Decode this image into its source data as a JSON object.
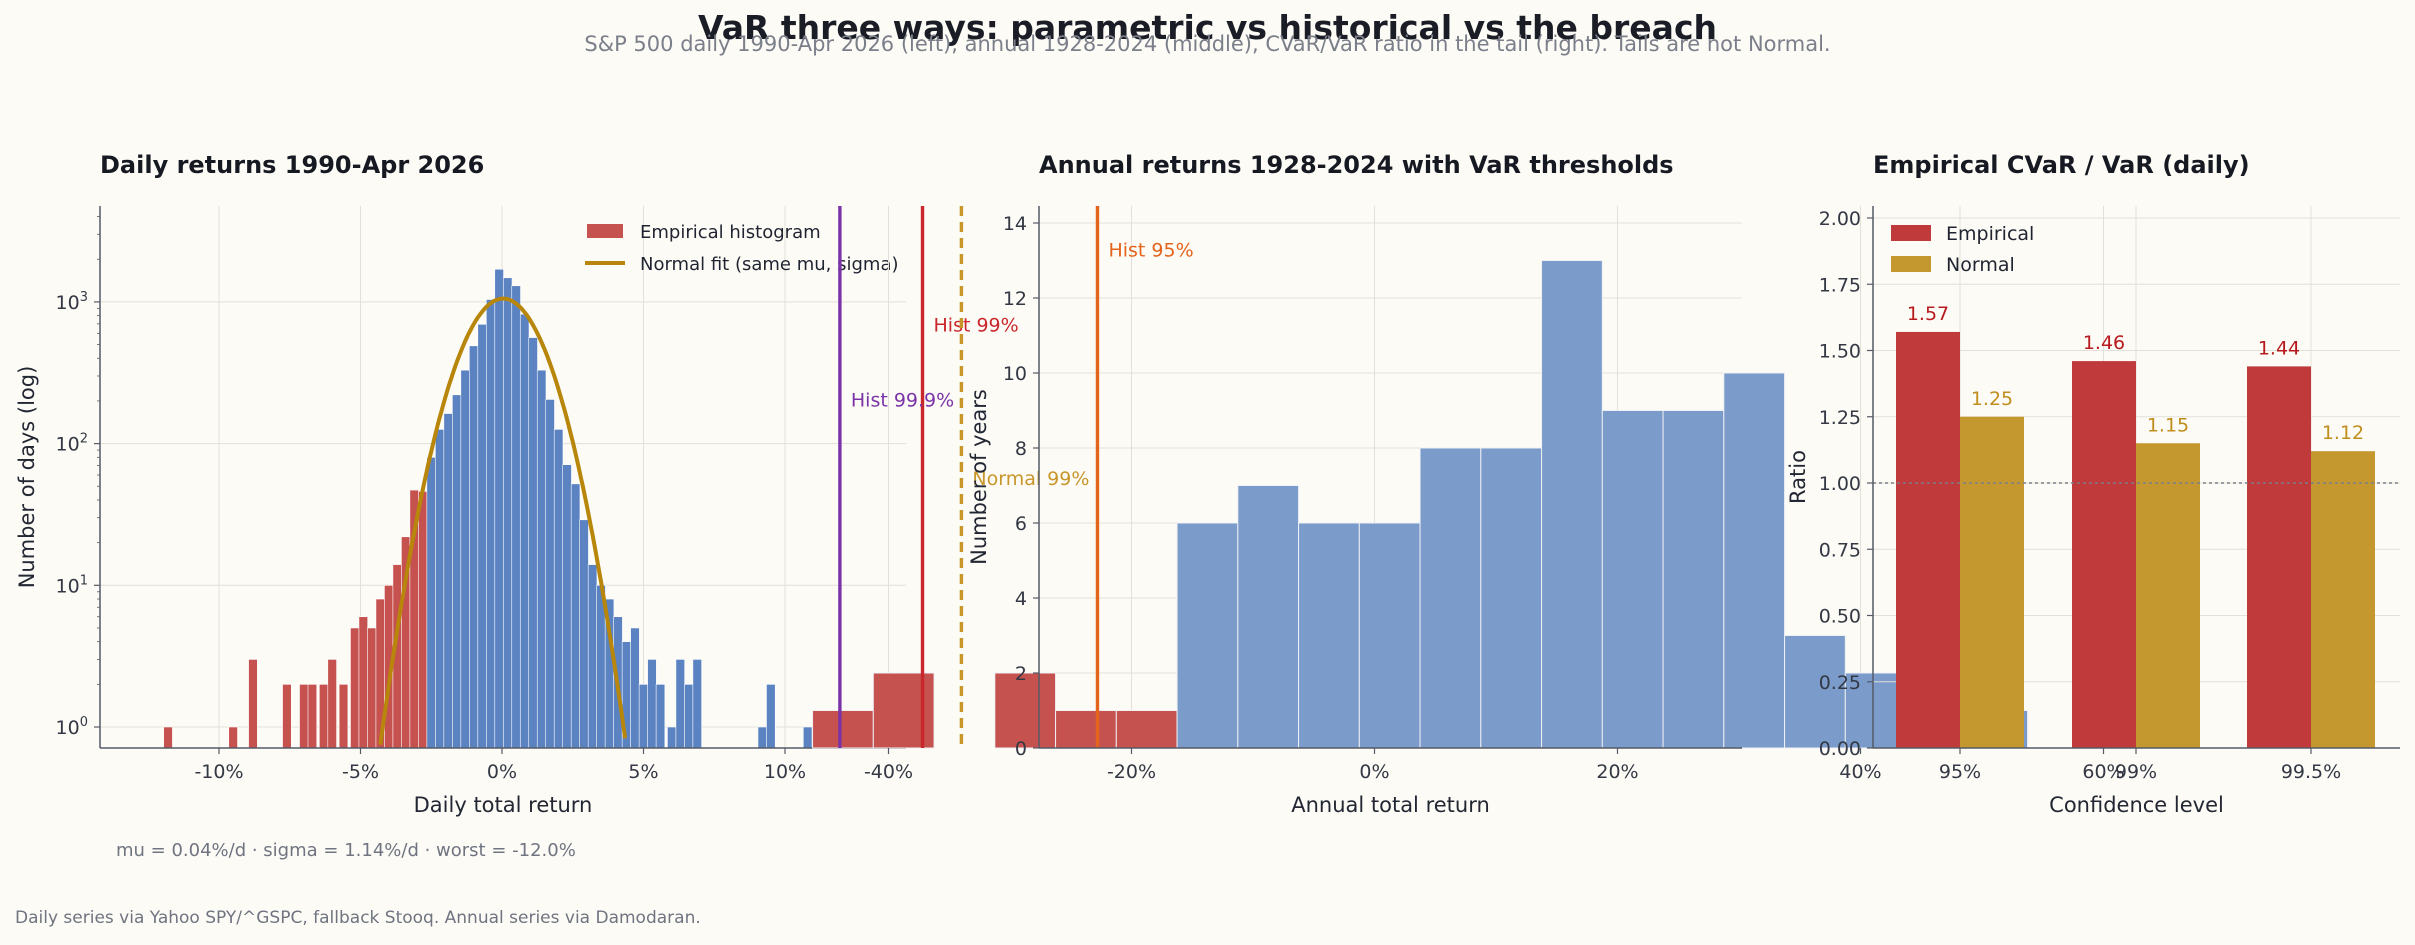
{
  "title": "VaR three ways: parametric vs historical vs the breach",
  "subtitle": "S&P 500 daily 1990-Apr 2026 (left), annual 1928-2024 (middle), CVaR/VaR ratio in the tail (right). Tails are not Normal.",
  "footer": "Daily series via Yahoo SPY/^GSPC, fallback Stooq. Annual series via Damodaran.",
  "colors": {
    "empirical_bar": "#c0393b",
    "loss_tail": "#c65250",
    "body_blue": "#5b83c2",
    "annual_blue": "#7b9bca",
    "normal_gold": "#c4982e",
    "normal_line": "#b8860b",
    "hist95": "#e4641c",
    "hist99": "#c9272c",
    "hist999": "#7b34a8",
    "normal99": "#c9962a"
  },
  "chart_data": [
    {
      "type": "bar",
      "title": "Daily returns 1990-Apr 2026",
      "xlabel": "Daily total return",
      "ylabel": "Number of days (log)",
      "scale_y": "log",
      "xlim": [
        -0.1,
        0.1
      ],
      "ylim": [
        0.7,
        5000
      ],
      "x_ticks": [
        "-10%",
        "-5%",
        "0%",
        "5%",
        "10%"
      ],
      "y_ticks": [
        "10^0",
        "10^1",
        "10^2",
        "10^3"
      ],
      "legend": [
        "Empirical histogram",
        "Normal fit (same mu, sigma)"
      ],
      "legend_position": "top-right",
      "grid": true,
      "bin_width": 0.005,
      "bins": [
        {
          "x": -0.118,
          "count": 1
        },
        {
          "x": -0.095,
          "count": 1
        },
        {
          "x": -0.088,
          "count": 3
        },
        {
          "x": -0.076,
          "count": 2
        },
        {
          "x": -0.07,
          "count": 2
        },
        {
          "x": -0.067,
          "count": 2
        },
        {
          "x": -0.063,
          "count": 2
        },
        {
          "x": -0.06,
          "count": 3
        },
        {
          "x": -0.056,
          "count": 2
        },
        {
          "x": -0.052,
          "count": 5
        },
        {
          "x": -0.049,
          "count": 6
        },
        {
          "x": -0.046,
          "count": 5
        },
        {
          "x": -0.043,
          "count": 8
        },
        {
          "x": -0.04,
          "count": 10
        },
        {
          "x": -0.037,
          "count": 14
        },
        {
          "x": -0.034,
          "count": 22
        },
        {
          "x": -0.031,
          "count": 47
        },
        {
          "x": -0.028,
          "count": 46
        },
        {
          "x": -0.025,
          "count": 80
        },
        {
          "x": -0.022,
          "count": 126
        },
        {
          "x": -0.019,
          "count": 163
        },
        {
          "x": -0.016,
          "count": 221
        },
        {
          "x": -0.013,
          "count": 330
        },
        {
          "x": -0.01,
          "count": 490
        },
        {
          "x": -0.007,
          "count": 695
        },
        {
          "x": -0.004,
          "count": 1040
        },
        {
          "x": -0.001,
          "count": 1700
        },
        {
          "x": 0.002,
          "count": 1480
        },
        {
          "x": 0.005,
          "count": 1300
        },
        {
          "x": 0.008,
          "count": 820
        },
        {
          "x": 0.011,
          "count": 560
        },
        {
          "x": 0.014,
          "count": 330
        },
        {
          "x": 0.017,
          "count": 205
        },
        {
          "x": 0.02,
          "count": 126
        },
        {
          "x": 0.023,
          "count": 71
        },
        {
          "x": 0.026,
          "count": 52
        },
        {
          "x": 0.029,
          "count": 29
        },
        {
          "x": 0.032,
          "count": 14
        },
        {
          "x": 0.035,
          "count": 10
        },
        {
          "x": 0.038,
          "count": 8
        },
        {
          "x": 0.041,
          "count": 6
        },
        {
          "x": 0.044,
          "count": 4
        },
        {
          "x": 0.047,
          "count": 5
        },
        {
          "x": 0.05,
          "count": 2
        },
        {
          "x": 0.053,
          "count": 3
        },
        {
          "x": 0.056,
          "count": 2
        },
        {
          "x": 0.06,
          "count": 1
        },
        {
          "x": 0.063,
          "count": 3
        },
        {
          "x": 0.066,
          "count": 2
        },
        {
          "x": 0.069,
          "count": 3
        },
        {
          "x": 0.092,
          "count": 1
        },
        {
          "x": 0.095,
          "count": 2
        },
        {
          "x": 0.108,
          "count": 1
        },
        {
          "x": 0.115,
          "count": 1
        }
      ],
      "tail_cutoff": -0.027,
      "normal_fit": {
        "mu": 0.0004,
        "sigma": 0.0114,
        "peak": 1055
      },
      "stats_text": "mu = 0.04%/d  ·  sigma = 1.14%/d  ·  worst = -12.0%"
    },
    {
      "type": "bar",
      "title": "Annual returns 1928-2024 with VaR thresholds",
      "xlabel": "Annual total return",
      "ylabel": "Number of years",
      "xlim": [
        -0.55,
        0.6
      ],
      "ylim": [
        0,
        14.5
      ],
      "x_ticks": [
        "-40%",
        "-20%",
        "0%",
        "20%",
        "40%",
        "60%"
      ],
      "y_ticks": [
        "0",
        "2",
        "4",
        "6",
        "8",
        "10",
        "12",
        "14"
      ],
      "grid": true,
      "bin_width": 0.05,
      "bins": [
        {
          "x": -0.4375,
          "count": 1,
          "tail": true
        },
        {
          "x": -0.3875,
          "count": 2,
          "tail": true
        },
        {
          "x": -0.3375,
          "count": 0,
          "tail": true
        },
        {
          "x": -0.2875,
          "count": 2,
          "tail": true
        },
        {
          "x": -0.2375,
          "count": 1,
          "tail": true
        },
        {
          "x": -0.1875,
          "count": 1,
          "tail": true
        },
        {
          "x": -0.1375,
          "count": 6,
          "tail": false
        },
        {
          "x": -0.0875,
          "count": 7,
          "tail": false
        },
        {
          "x": -0.0375,
          "count": 6,
          "tail": false
        },
        {
          "x": 0.0125,
          "count": 6,
          "tail": false
        },
        {
          "x": 0.0625,
          "count": 8,
          "tail": false
        },
        {
          "x": 0.1125,
          "count": 8,
          "tail": false
        },
        {
          "x": 0.1625,
          "count": 13,
          "tail": false
        },
        {
          "x": 0.2125,
          "count": 9,
          "tail": false
        },
        {
          "x": 0.2625,
          "count": 9,
          "tail": false
        },
        {
          "x": 0.3125,
          "count": 10,
          "tail": false
        },
        {
          "x": 0.3625,
          "count": 3,
          "tail": false
        },
        {
          "x": 0.4125,
          "count": 2,
          "tail": false
        },
        {
          "x": 0.4625,
          "count": 2,
          "tail": false
        },
        {
          "x": 0.5125,
          "count": 1,
          "tail": false
        }
      ],
      "thresholds": [
        {
          "label": "Hist 95%",
          "x": -0.228,
          "color": "#e4641c",
          "dashed": false,
          "label_y": 13.3
        },
        {
          "label": "Hist 99%",
          "x": -0.372,
          "color": "#c9272c",
          "dashed": false,
          "label_y": 11.3
        },
        {
          "label": "Hist 99.9%",
          "x": -0.44,
          "color": "#7b34a8",
          "dashed": false,
          "label_y": 9.3
        },
        {
          "label": "Normal 99%",
          "x": -0.34,
          "color": "#c9962a",
          "dashed": true,
          "label_y": 7.2
        }
      ]
    },
    {
      "type": "bar",
      "title": "Empirical CVaR / VaR (daily)",
      "xlabel": "Confidence level",
      "ylabel": "Ratio",
      "ylim": [
        0,
        2.05
      ],
      "categories": [
        "95%",
        "99%",
        "99.5%"
      ],
      "y_ticks": [
        "0.00",
        "0.25",
        "0.50",
        "0.75",
        "1.00",
        "1.25",
        "1.50",
        "1.75",
        "2.00"
      ],
      "legend_position": "top-left",
      "grid": true,
      "reference_line": 1.0,
      "series": [
        {
          "name": "Empirical",
          "values": [
            1.57,
            1.46,
            1.44
          ],
          "labels": [
            "1.57",
            "1.46",
            "1.44"
          ]
        },
        {
          "name": "Normal",
          "values": [
            1.25,
            1.15,
            1.12
          ],
          "labels": [
            "1.25",
            "1.15",
            "1.12"
          ]
        }
      ]
    }
  ]
}
